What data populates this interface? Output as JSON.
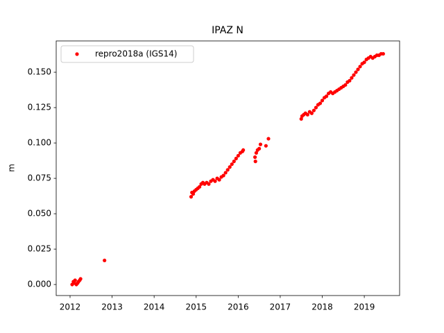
{
  "chart_data": {
    "type": "scatter",
    "title": "IPAZ N",
    "ylabel": "m",
    "x": [
      2012.05,
      2012.08,
      2012.1,
      2012.12,
      2012.15,
      2012.18,
      2012.2,
      2012.23,
      2012.25,
      2012.82,
      2014.88,
      2014.9,
      2014.93,
      2014.96,
      2015.0,
      2015.04,
      2015.08,
      2015.12,
      2015.16,
      2015.2,
      2015.25,
      2015.3,
      2015.35,
      2015.4,
      2015.45,
      2015.5,
      2015.55,
      2015.6,
      2015.65,
      2015.7,
      2015.75,
      2015.8,
      2015.85,
      2015.9,
      2015.95,
      2016.0,
      2016.05,
      2016.1,
      2016.12,
      2016.4,
      2016.41,
      2016.43,
      2016.46,
      2016.5,
      2016.53,
      2016.66,
      2016.72,
      2017.5,
      2017.52,
      2017.56,
      2017.6,
      2017.65,
      2017.7,
      2017.75,
      2017.8,
      2017.85,
      2017.9,
      2017.95,
      2018.0,
      2018.05,
      2018.1,
      2018.15,
      2018.2,
      2018.25,
      2018.3,
      2018.35,
      2018.4,
      2018.45,
      2018.5,
      2018.55,
      2018.6,
      2018.65,
      2018.7,
      2018.75,
      2018.8,
      2018.85,
      2018.9,
      2018.95,
      2019.0,
      2019.05,
      2019.1,
      2019.15,
      2019.2,
      2019.25,
      2019.3,
      2019.35,
      2019.4,
      2019.45
    ],
    "series": [
      {
        "name": "repro2018a (IGS14)",
        "color": "#ff0000",
        "values": [
          0,
          0.002,
          0.001,
          0.003,
          0,
          0.001,
          0.002,
          0.003,
          0.004,
          0.017,
          0.062,
          0.065,
          0.064,
          0.066,
          0.067,
          0.068,
          0.069,
          0.071,
          0.072,
          0.071,
          0.072,
          0.071,
          0.073,
          0.074,
          0.073,
          0.075,
          0.074,
          0.076,
          0.077,
          0.079,
          0.081,
          0.083,
          0.085,
          0.087,
          0.089,
          0.091,
          0.093,
          0.094,
          0.095,
          0.09,
          0.087,
          0.093,
          0.095,
          0.096,
          0.099,
          0.098,
          0.103,
          0.117,
          0.119,
          0.12,
          0.121,
          0.12,
          0.122,
          0.121,
          0.123,
          0.125,
          0.127,
          0.128,
          0.13,
          0.132,
          0.133,
          0.135,
          0.136,
          0.135,
          0.136,
          0.137,
          0.138,
          0.139,
          0.14,
          0.141,
          0.143,
          0.144,
          0.146,
          0.148,
          0.15,
          0.152,
          0.154,
          0.156,
          0.157,
          0.159,
          0.16,
          0.161,
          0.16,
          0.161,
          0.162,
          0.162,
          0.163,
          0.163
        ]
      }
    ],
    "xlim": [
      2011.67,
      2019.84
    ],
    "xticks": [
      2012,
      2013,
      2014,
      2015,
      2016,
      2017,
      2018,
      2019
    ],
    "ylim": [
      -0.0078,
      0.1721
    ],
    "yticks": [
      {
        "value": 0,
        "label": "0.000"
      },
      {
        "value": 0.025,
        "label": "0.025"
      },
      {
        "value": 0.05,
        "label": "0.050"
      },
      {
        "value": 0.075,
        "label": "0.075"
      },
      {
        "value": 0.1,
        "label": "0.100"
      },
      {
        "value": 0.125,
        "label": "0.125"
      },
      {
        "value": 0.15,
        "label": "0.150"
      }
    ],
    "legend": "upper left",
    "grid": false
  }
}
